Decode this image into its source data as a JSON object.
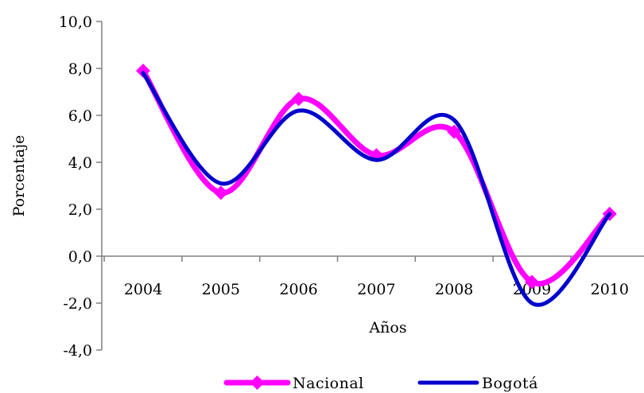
{
  "chart_data": {
    "type": "line",
    "title": "",
    "xlabel": "Años",
    "ylabel": "Porcentaje",
    "categories": [
      "2004",
      "2005",
      "2006",
      "2007",
      "2008",
      "2009",
      "2010"
    ],
    "ylim": [
      -4.0,
      10.0
    ],
    "y_ticks": [
      "10,0",
      "8,0",
      "6,0",
      "4,0",
      "2,0",
      "0,0",
      "-2,0",
      "-4,0"
    ],
    "y_tick_values": [
      10,
      8,
      6,
      4,
      2,
      0,
      -2,
      -4
    ],
    "smoothed": true,
    "grid": false,
    "legend_position": "bottom",
    "series": [
      {
        "name": "Nacional",
        "color": "#ff00ff",
        "marker": "diamond",
        "values": [
          7.9,
          2.7,
          6.7,
          4.3,
          5.3,
          -1.1,
          1.8
        ]
      },
      {
        "name": "Bogotá",
        "color": "#0000cc",
        "marker": "none",
        "values": [
          7.8,
          3.1,
          6.2,
          4.1,
          5.8,
          -2.0,
          1.8
        ]
      }
    ]
  }
}
